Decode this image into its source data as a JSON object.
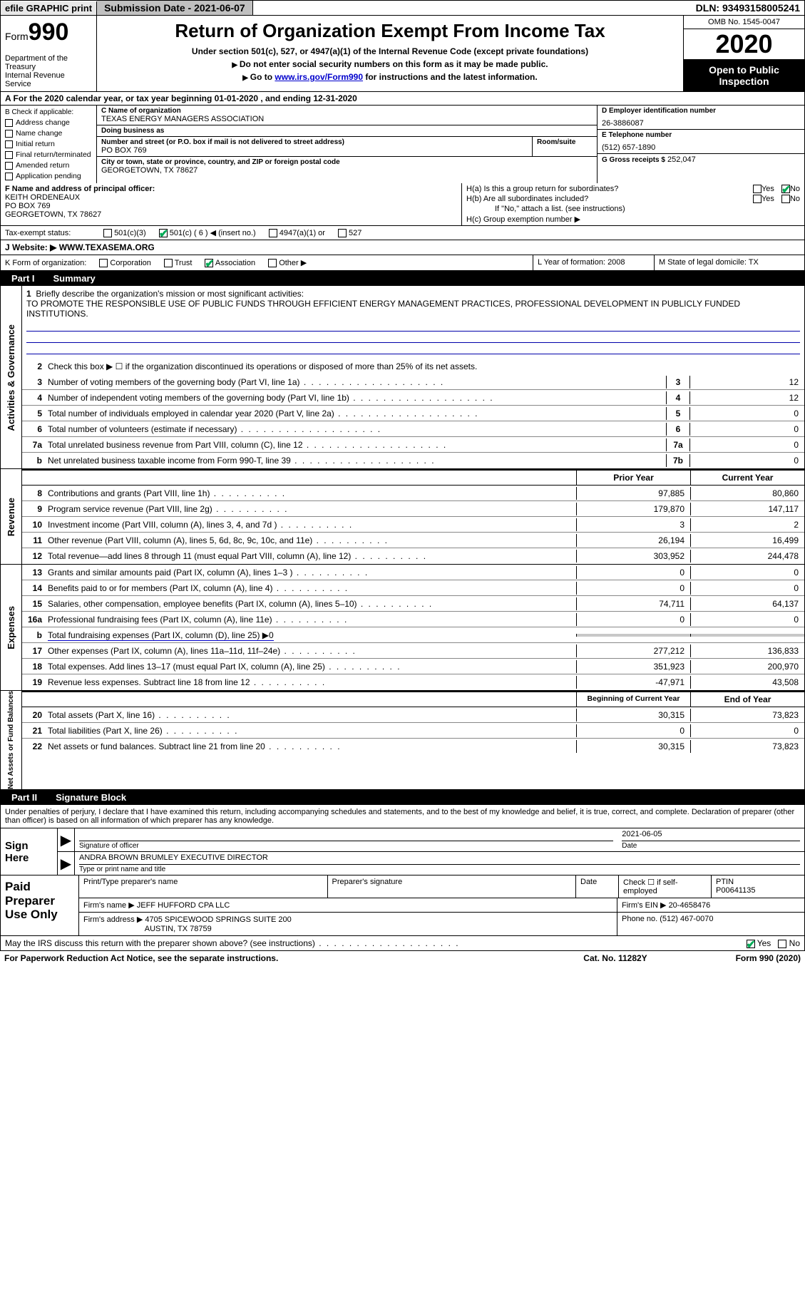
{
  "topbar": {
    "efile": "efile GRAPHIC print",
    "submission": "Submission Date - 2021-06-07",
    "dln": "DLN: 93493158005241"
  },
  "header": {
    "form_prefix": "Form",
    "form_num": "990",
    "dept": "Department of the Treasury",
    "irs": "Internal Revenue Service",
    "title": "Return of Organization Exempt From Income Tax",
    "sub1": "Under section 501(c), 527, or 4947(a)(1) of the Internal Revenue Code (except private foundations)",
    "sub2": "Do not enter social security numbers on this form as it may be made public.",
    "sub3_a": "Go to ",
    "sub3_link": "www.irs.gov/Form990",
    "sub3_b": " for instructions and the latest information.",
    "omb": "OMB No. 1545-0047",
    "year": "2020",
    "open": "Open to Public Inspection"
  },
  "rowA": "A For the 2020 calendar year, or tax year beginning 01-01-2020   , and ending 12-31-2020",
  "boxB": {
    "title": "B Check if applicable:",
    "items": [
      "Address change",
      "Name change",
      "Initial return",
      "Final return/terminated",
      "Amended return",
      "Application pending"
    ]
  },
  "boxC": {
    "name_lbl": "C Name of organization",
    "name": "TEXAS ENERGY MANAGERS ASSOCIATION",
    "dba_lbl": "Doing business as",
    "dba": "",
    "addr_lbl": "Number and street (or P.O. box if mail is not delivered to street address)",
    "room_lbl": "Room/suite",
    "addr": "PO BOX 769",
    "city_lbl": "City or town, state or province, country, and ZIP or foreign postal code",
    "city": "GEORGETOWN, TX  78627"
  },
  "boxD": {
    "lbl": "D Employer identification number",
    "val": "26-3886087"
  },
  "boxE": {
    "lbl": "E Telephone number",
    "val": "(512) 657-1890"
  },
  "boxG": {
    "lbl": "G Gross receipts $",
    "val": "252,047"
  },
  "boxF": {
    "lbl": "F  Name and address of principal officer:",
    "l1": "KEITH ORDENEAUX",
    "l2": "PO BOX 769",
    "l3": "GEORGETOWN, TX  78627"
  },
  "boxH": {
    "a": "H(a)  Is this a group return for subordinates?",
    "b": "H(b)  Are all subordinates included?",
    "bnote": "If \"No,\" attach a list. (see instructions)",
    "c": "H(c)  Group exemption number ▶",
    "yes": "Yes",
    "no": "No"
  },
  "taxrow": {
    "lbl": "Tax-exempt status:",
    "o1": "501(c)(3)",
    "o2": "501(c) ( 6 ) ◀ (insert no.)",
    "o3": "4947(a)(1) or",
    "o4": "527"
  },
  "rowJ": {
    "lbl": "J   Website: ▶",
    "val": "WWW.TEXASEMA.ORG"
  },
  "rowK": {
    "lbl": "K Form of organization:",
    "o1": "Corporation",
    "o2": "Trust",
    "o3": "Association",
    "o4": "Other ▶",
    "l_lbl": "L Year of formation:",
    "l_val": "2008",
    "m_lbl": "M State of legal domicile:",
    "m_val": "TX"
  },
  "part1": {
    "tab": "Part I",
    "title": "Summary",
    "side_ag": "Activities & Governance",
    "side_rev": "Revenue",
    "side_exp": "Expenses",
    "side_na": "Net Assets or Fund Balances",
    "l1": "Briefly describe the organization's mission or most significant activities:",
    "mission": "TO PROMOTE THE RESPONSIBLE USE OF PUBLIC FUNDS THROUGH EFFICIENT ENERGY MANAGEMENT PRACTICES, PROFESSIONAL DEVELOPMENT IN PUBLICLY FUNDED INSTITUTIONS.",
    "l2": "Check this box ▶ ☐  if the organization discontinued its operations or disposed of more than 25% of its net assets.",
    "lines_ag": [
      {
        "n": "3",
        "t": "Number of voting members of the governing body (Part VI, line 1a)",
        "b": "3",
        "v": "12"
      },
      {
        "n": "4",
        "t": "Number of independent voting members of the governing body (Part VI, line 1b)",
        "b": "4",
        "v": "12"
      },
      {
        "n": "5",
        "t": "Total number of individuals employed in calendar year 2020 (Part V, line 2a)",
        "b": "5",
        "v": "0"
      },
      {
        "n": "6",
        "t": "Total number of volunteers (estimate if necessary)",
        "b": "6",
        "v": "0"
      },
      {
        "n": "7a",
        "t": "Total unrelated business revenue from Part VIII, column (C), line 12",
        "b": "7a",
        "v": "0"
      },
      {
        "n": "b",
        "t": "Net unrelated business taxable income from Form 990-T, line 39",
        "b": "7b",
        "v": "0"
      }
    ],
    "col_prior": "Prior Year",
    "col_curr": "Current Year",
    "lines_rev": [
      {
        "n": "8",
        "t": "Contributions and grants (Part VIII, line 1h)",
        "p": "97,885",
        "c": "80,860"
      },
      {
        "n": "9",
        "t": "Program service revenue (Part VIII, line 2g)",
        "p": "179,870",
        "c": "147,117"
      },
      {
        "n": "10",
        "t": "Investment income (Part VIII, column (A), lines 3, 4, and 7d )",
        "p": "3",
        "c": "2"
      },
      {
        "n": "11",
        "t": "Other revenue (Part VIII, column (A), lines 5, 6d, 8c, 9c, 10c, and 11e)",
        "p": "26,194",
        "c": "16,499"
      },
      {
        "n": "12",
        "t": "Total revenue—add lines 8 through 11 (must equal Part VIII, column (A), line 12)",
        "p": "303,952",
        "c": "244,478"
      }
    ],
    "lines_exp": [
      {
        "n": "13",
        "t": "Grants and similar amounts paid (Part IX, column (A), lines 1–3 )",
        "p": "0",
        "c": "0"
      },
      {
        "n": "14",
        "t": "Benefits paid to or for members (Part IX, column (A), line 4)",
        "p": "0",
        "c": "0"
      },
      {
        "n": "15",
        "t": "Salaries, other compensation, employee benefits (Part IX, column (A), lines 5–10)",
        "p": "74,711",
        "c": "64,137"
      },
      {
        "n": "16a",
        "t": "Professional fundraising fees (Part IX, column (A), line 11e)",
        "p": "0",
        "c": "0"
      }
    ],
    "l16b": "Total fundraising expenses (Part IX, column (D), line 25) ▶0",
    "lines_exp2": [
      {
        "n": "17",
        "t": "Other expenses (Part IX, column (A), lines 11a–11d, 11f–24e)",
        "p": "277,212",
        "c": "136,833"
      },
      {
        "n": "18",
        "t": "Total expenses. Add lines 13–17 (must equal Part IX, column (A), line 25)",
        "p": "351,923",
        "c": "200,970"
      },
      {
        "n": "19",
        "t": "Revenue less expenses. Subtract line 18 from line 12",
        "p": "-47,971",
        "c": "43,508"
      }
    ],
    "col_beg": "Beginning of Current Year",
    "col_end": "End of Year",
    "lines_na": [
      {
        "n": "20",
        "t": "Total assets (Part X, line 16)",
        "p": "30,315",
        "c": "73,823"
      },
      {
        "n": "21",
        "t": "Total liabilities (Part X, line 26)",
        "p": "0",
        "c": "0"
      },
      {
        "n": "22",
        "t": "Net assets or fund balances. Subtract line 21 from line 20",
        "p": "30,315",
        "c": "73,823"
      }
    ]
  },
  "part2": {
    "tab": "Part II",
    "title": "Signature Block",
    "disclaim": "Under penalties of perjury, I declare that I have examined this return, including accompanying schedules and statements, and to the best of my knowledge and belief, it is true, correct, and complete. Declaration of preparer (other than officer) is based on all information of which preparer has any knowledge.",
    "sign": "Sign Here",
    "sig_officer_lbl": "Signature of officer",
    "date_lbl": "Date",
    "date_val": "2021-06-05",
    "name_val": "ANDRA BROWN BRUMLEY  EXECUTIVE DIRECTOR",
    "name_lbl": "Type or print name and title",
    "paid": "Paid Preparer Use Only",
    "h_print": "Print/Type preparer's name",
    "h_sig": "Preparer's signature",
    "h_date": "Date",
    "h_check": "Check ☐ if self-employed",
    "h_ptin": "PTIN",
    "ptin_val": "P00641135",
    "firm_name_lbl": "Firm's name    ▶",
    "firm_name": "JEFF HUFFORD CPA LLC",
    "firm_ein_lbl": "Firm's EIN ▶",
    "firm_ein": "20-4658476",
    "firm_addr_lbl": "Firm's address ▶",
    "firm_addr1": "4705 SPICEWOOD SPRINGS SUITE 200",
    "firm_addr2": "AUSTIN, TX  78759",
    "phone_lbl": "Phone no.",
    "phone": "(512) 467-0070",
    "discuss": "May the IRS discuss this return with the preparer shown above? (see instructions)",
    "yes": "Yes",
    "no": "No"
  },
  "footer": {
    "pra": "For Paperwork Reduction Act Notice, see the separate instructions.",
    "cat": "Cat. No. 11282Y",
    "form": "Form 990 (2020)"
  },
  "colors": {
    "link": "#0000cc",
    "check": "#00aa55",
    "shade": "#c8c8c8"
  }
}
